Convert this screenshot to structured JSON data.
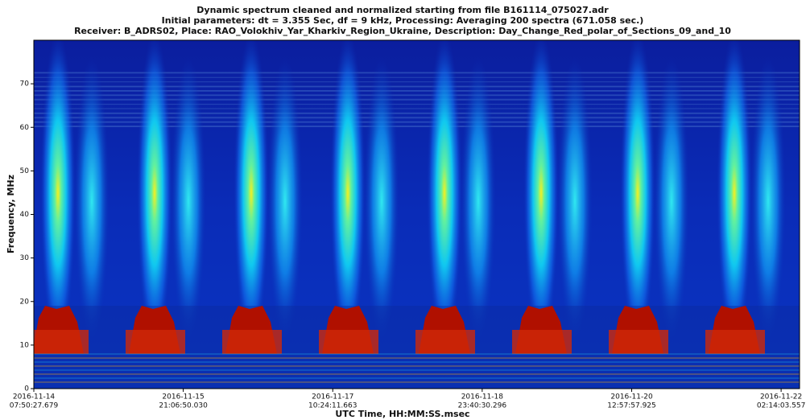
{
  "chart_data": {
    "type": "spectrogram",
    "title": "Dynamic spectrum cleaned and normalized starting from file B161114_075027.adr",
    "subtitle": "Initial parameters: dt = 3.355 Sec, df = 9 kHz, Processing: Averaging 200 spectra (671.058 sec.)",
    "description": "Receiver: B_ADRS02, Place: RAO_Volokhiv_Yar_Kharkiv_Region_Ukraine, Description: Day_Change_Red_polar_of_Sections_09_and_10",
    "x_label": "UTC Time, HH:MM:SS.msec",
    "y_label": "Frequency, MHz",
    "xlim": [
      "2016-11-14T07:50:27.679Z",
      "2016-11-22T06:50:00.000Z"
    ],
    "xticks": [
      {
        "value": "2016-11-14T07:50:27.679Z",
        "label": [
          "2016-11-14",
          "07:50:27.679"
        ]
      },
      {
        "value": "2016-11-15T21:06:50.030Z",
        "label": [
          "2016-11-15",
          "21:06:50.030"
        ]
      },
      {
        "value": "2016-11-17T10:24:11.663Z",
        "label": [
          "2016-11-17",
          "10:24:11.663"
        ]
      },
      {
        "value": "2016-11-18T23:40:30.296Z",
        "label": [
          "2016-11-18",
          "23:40:30.296"
        ]
      },
      {
        "value": "2016-11-20T12:57:57.925Z",
        "label": [
          "2016-11-20",
          "12:57:57.925"
        ]
      },
      {
        "value": "2016-11-22T02:14:03.557Z",
        "label": [
          "2016-11-22",
          "02:14:03.557"
        ]
      }
    ],
    "ylim": [
      0,
      80
    ],
    "yticks": [
      0,
      10,
      20,
      30,
      40,
      50,
      60,
      70
    ]
  }
}
